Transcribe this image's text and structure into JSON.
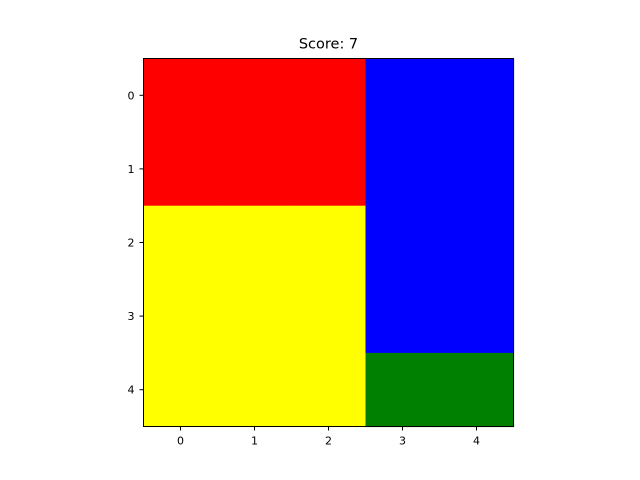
{
  "title": "Score: 7",
  "grid": {
    "rows": 5,
    "cols": 5,
    "x_ticks": [
      "0",
      "1",
      "2",
      "3",
      "4"
    ],
    "y_ticks": [
      "0",
      "1",
      "2",
      "3",
      "4"
    ],
    "cells": [
      [
        "red",
        "red",
        "red",
        "blue",
        "blue"
      ],
      [
        "red",
        "red",
        "red",
        "blue",
        "blue"
      ],
      [
        "yellow",
        "yellow",
        "yellow",
        "blue",
        "blue"
      ],
      [
        "yellow",
        "yellow",
        "yellow",
        "blue",
        "blue"
      ],
      [
        "yellow",
        "yellow",
        "yellow",
        "green",
        "green"
      ]
    ]
  },
  "palette": {
    "red": "#ff0000",
    "blue": "#0000ff",
    "yellow": "#ffff00",
    "green": "#008000"
  }
}
